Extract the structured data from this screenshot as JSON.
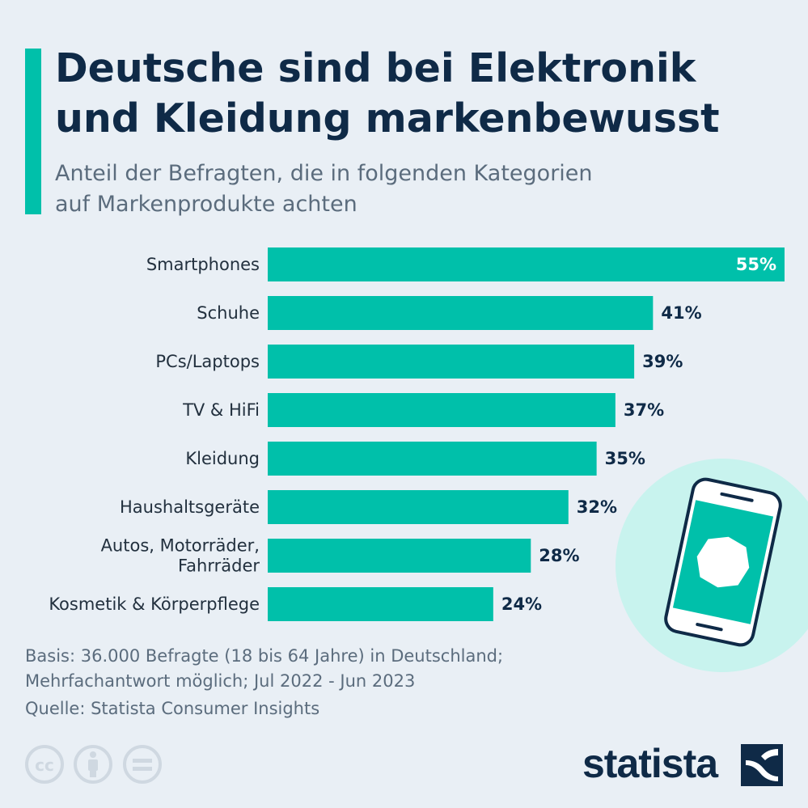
{
  "header": {
    "title_lines": [
      "Deutsche sind bei Elektronik",
      "und Kleidung markenbewusst"
    ],
    "subtitle_lines": [
      "Anteil der Befragten, die in folgenden Kategorien",
      "auf Markenprodukte achten"
    ]
  },
  "colors": {
    "accent": "#00c0aa",
    "bar": "#00c0aa",
    "title": "#0f2a47",
    "subtitle": "#5b6c7d",
    "background": "#e9eff5",
    "illustration_circle": "#c8f3ee"
  },
  "chart_data": {
    "type": "bar",
    "orientation": "horizontal",
    "title": "Deutsche sind bei Elektronik und Kleidung markenbewusst",
    "subtitle": "Anteil der Befragten, die in folgenden Kategorien auf Markenprodukte achten",
    "categories": [
      [
        "Smartphones"
      ],
      [
        "Schuhe"
      ],
      [
        "PCs/Laptops"
      ],
      [
        "TV & HiFi"
      ],
      [
        "Kleidung"
      ],
      [
        "Haushaltsgeräte"
      ],
      [
        "Autos, Motorräder,",
        "Fahrräder"
      ],
      [
        "Kosmetik & Körperpflege"
      ]
    ],
    "values": [
      55,
      41,
      39,
      37,
      35,
      32,
      28,
      24
    ],
    "value_labels": [
      "55%",
      "41%",
      "39%",
      "37%",
      "35%",
      "32%",
      "28%",
      "24%"
    ],
    "unit": "%",
    "xlim": [
      0,
      55
    ],
    "grid": false,
    "legend": "none"
  },
  "footnote": {
    "basis_lines": [
      "Basis: 36.000 Befragte (18 bis 64 Jahre) in Deutschland;",
      "Mehrfachantwort möglich; Jul 2022 - Jun 2023"
    ],
    "source": "Quelle: Statista Consumer Insights"
  },
  "license_icons": [
    "cc-icon",
    "by-attribution-icon",
    "nd-equals-icon"
  ],
  "illustration_icon": "smartphone-icon",
  "logo": {
    "text": "statista"
  }
}
